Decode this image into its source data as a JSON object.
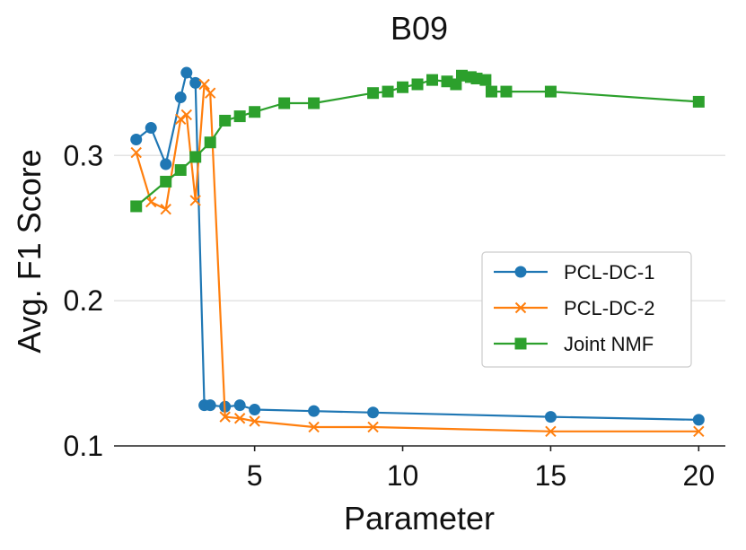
{
  "chart_data": {
    "type": "line",
    "title": "B09",
    "xlabel": "Parameter",
    "ylabel": "Avg. F1 Score",
    "xlim": [
      0.25,
      20.9
    ],
    "ylim": [
      0.1,
      0.37
    ],
    "xticks": [
      5,
      10,
      15,
      20
    ],
    "xtick_labels": [
      "5",
      "10",
      "15",
      "20"
    ],
    "yticks": [
      0.1,
      0.2,
      0.3
    ],
    "ytick_labels": [
      "0.1",
      "0.2",
      "0.3"
    ],
    "grid": "horizontal",
    "legend_position": "center-right",
    "series": [
      {
        "name": "PCL-DC-1",
        "color": "#1f77b4",
        "marker": "circle",
        "x": [
          1,
          1.5,
          2,
          2.5,
          2.7,
          3,
          3.3,
          3.5,
          4,
          4.5,
          5,
          7,
          9,
          15,
          20
        ],
        "y": [
          0.311,
          0.319,
          0.294,
          0.34,
          0.357,
          0.35,
          0.128,
          0.128,
          0.127,
          0.128,
          0.125,
          0.124,
          0.123,
          0.12,
          0.118
        ]
      },
      {
        "name": "PCL-DC-2",
        "color": "#ff7f0e",
        "marker": "x",
        "x": [
          1,
          1.5,
          2,
          2.5,
          2.7,
          3,
          3.3,
          3.5,
          4,
          4.5,
          5,
          7,
          9,
          15,
          20
        ],
        "y": [
          0.302,
          0.268,
          0.263,
          0.325,
          0.328,
          0.269,
          0.349,
          0.343,
          0.12,
          0.119,
          0.117,
          0.113,
          0.113,
          0.11,
          0.11
        ]
      },
      {
        "name": "Joint NMF",
        "color": "#2ca02c",
        "marker": "square",
        "x": [
          1,
          2,
          2.5,
          3,
          3.5,
          4,
          4.5,
          5,
          6,
          7,
          9,
          9.5,
          10,
          10.5,
          11,
          11.5,
          11.8,
          12,
          12.3,
          12.5,
          12.8,
          13,
          13.5,
          15,
          20
        ],
        "y": [
          0.265,
          0.282,
          0.29,
          0.299,
          0.309,
          0.324,
          0.327,
          0.33,
          0.336,
          0.336,
          0.343,
          0.344,
          0.347,
          0.349,
          0.352,
          0.351,
          0.349,
          0.355,
          0.354,
          0.353,
          0.352,
          0.344,
          0.344,
          0.344,
          0.337
        ]
      }
    ]
  }
}
